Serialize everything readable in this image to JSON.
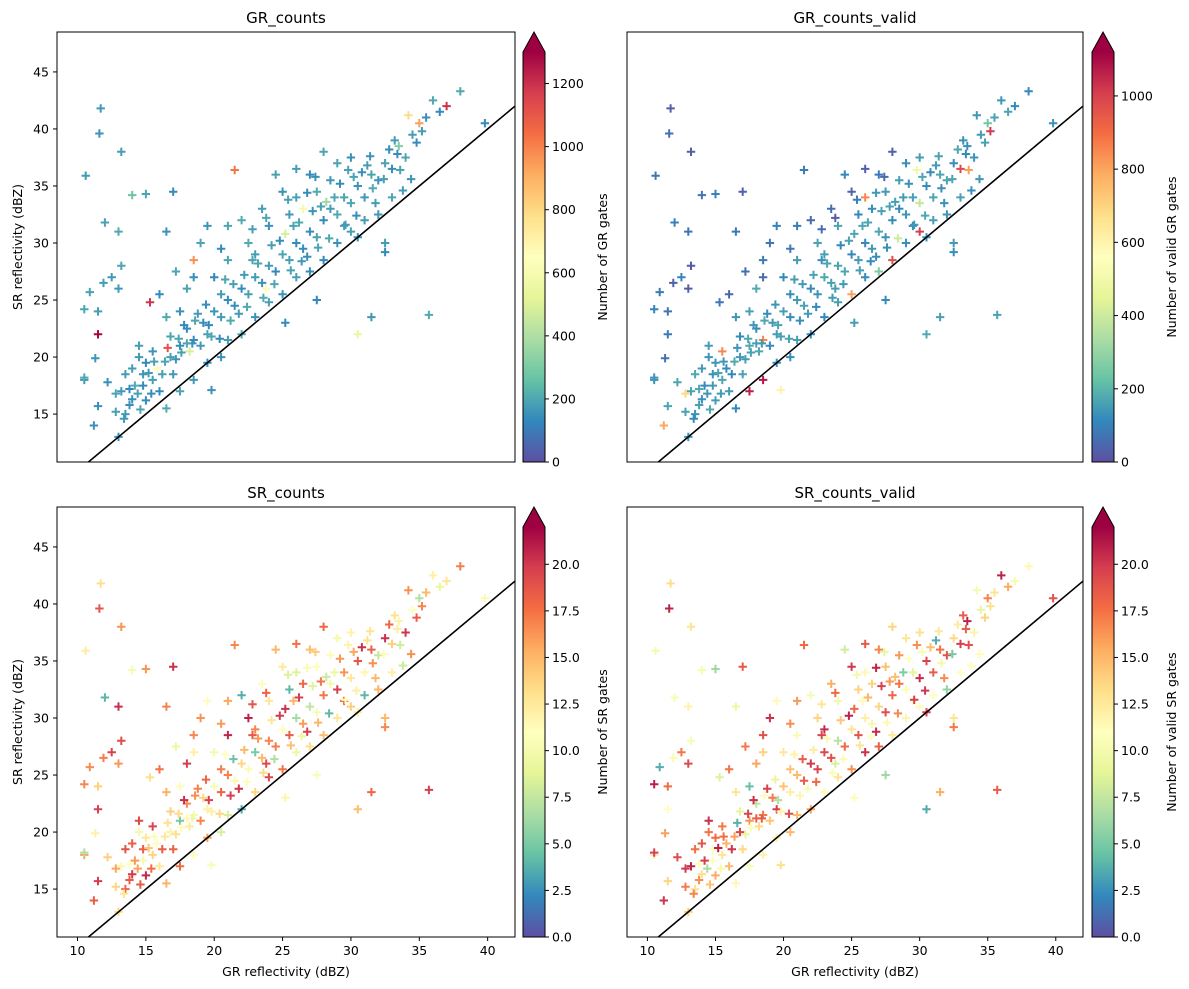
{
  "chart_data": [
    {
      "type": "scatter",
      "title": "GR_counts",
      "xlabel": "",
      "ylabel": "SR reflectivity (dBZ)",
      "xlim": [
        8.5,
        42
      ],
      "ylim": [
        10.8,
        48.5
      ],
      "xticks": [],
      "yticks": [
        "15",
        "20",
        "25",
        "30",
        "35",
        "40",
        "45"
      ],
      "marker": "+",
      "colormap": "Spectral_r",
      "reference_line": "1:1",
      "colorbar": {
        "label": "Number of GR gates",
        "min": 0,
        "max": 1300,
        "extend": "max",
        "ticks": [
          "0",
          "200",
          "400",
          "600",
          "800",
          "1000",
          "1200"
        ]
      }
    },
    {
      "type": "scatter",
      "title": "GR_counts_valid",
      "xlabel": "",
      "ylabel": "",
      "xlim": [
        8.5,
        42
      ],
      "ylim": [
        10.8,
        48.5
      ],
      "xticks": [],
      "yticks": [],
      "marker": "+",
      "colormap": "Spectral_r",
      "reference_line": "1:1",
      "colorbar": {
        "label": "Number of valid GR gates",
        "min": 0,
        "max": 1120,
        "extend": "max",
        "ticks": [
          "0",
          "200",
          "400",
          "600",
          "800",
          "1000"
        ]
      }
    },
    {
      "type": "scatter",
      "title": "SR_counts",
      "xlabel": "GR reflectivity (dBZ)",
      "ylabel": "SR reflectivity (dBZ)",
      "xlim": [
        8.5,
        42
      ],
      "ylim": [
        10.8,
        48.5
      ],
      "xticks": [
        "10",
        "15",
        "20",
        "25",
        "30",
        "35",
        "40"
      ],
      "yticks": [
        "15",
        "20",
        "25",
        "30",
        "35",
        "40",
        "45"
      ],
      "marker": "+",
      "colormap": "Spectral_r",
      "reference_line": "1:1",
      "colorbar": {
        "label": "Number of SR gates",
        "min": 0,
        "max": 22,
        "extend": "max",
        "ticks": [
          "0.0",
          "2.5",
          "5.0",
          "7.5",
          "10.0",
          "12.5",
          "15.0",
          "17.5",
          "20.0"
        ]
      }
    },
    {
      "type": "scatter",
      "title": "SR_counts_valid",
      "xlabel": "GR reflectivity (dBZ)",
      "ylabel": "",
      "xlim": [
        8.5,
        42
      ],
      "ylim": [
        10.8,
        48.5
      ],
      "xticks": [
        "10",
        "15",
        "20",
        "25",
        "30",
        "35",
        "40"
      ],
      "yticks": [],
      "marker": "+",
      "colormap": "Spectral_r",
      "reference_line": "1:1",
      "colorbar": {
        "label": "Number of valid SR gates",
        "min": 0,
        "max": 22,
        "extend": "max",
        "ticks": [
          "0.0",
          "2.5",
          "5.0",
          "7.5",
          "10.0",
          "12.5",
          "15.0",
          "17.5",
          "20.0"
        ]
      }
    }
  ],
  "scatter_points": [
    [
      13.0,
      13.0
    ],
    [
      11.2,
      14.0
    ],
    [
      12.8,
      15.2
    ],
    [
      13.5,
      15.0
    ],
    [
      14.0,
      16.3
    ],
    [
      13.2,
      17.0
    ],
    [
      10.5,
      18.0
    ],
    [
      14.8,
      17.5
    ],
    [
      15.0,
      19.5
    ],
    [
      16.2,
      18.5
    ],
    [
      15.5,
      20.5
    ],
    [
      16.8,
      20.0
    ],
    [
      17.5,
      21.0
    ],
    [
      18.0,
      22.5
    ],
    [
      18.5,
      21.5
    ],
    [
      19.2,
      23.0
    ],
    [
      20.0,
      24.0
    ],
    [
      19.5,
      22.0
    ],
    [
      20.5,
      23.5
    ],
    [
      21.0,
      25.0
    ],
    [
      21.5,
      24.5
    ],
    [
      22.0,
      26.0
    ],
    [
      22.5,
      25.5
    ],
    [
      23.0,
      27.0
    ],
    [
      23.5,
      26.5
    ],
    [
      24.0,
      28.0
    ],
    [
      24.5,
      27.5
    ],
    [
      25.0,
      29.0
    ],
    [
      25.5,
      28.5
    ],
    [
      26.0,
      30.0
    ],
    [
      26.5,
      29.5
    ],
    [
      27.0,
      31.0
    ],
    [
      27.5,
      30.5
    ],
    [
      28.0,
      32.0
    ],
    [
      28.5,
      33.0
    ],
    [
      29.0,
      32.5
    ],
    [
      29.5,
      34.0
    ],
    [
      30.0,
      33.5
    ],
    [
      30.5,
      35.0
    ],
    [
      31.0,
      34.0
    ],
    [
      31.5,
      36.0
    ],
    [
      32.0,
      35.5
    ],
    [
      32.5,
      37.0
    ],
    [
      33.0,
      36.5
    ],
    [
      33.5,
      38.5
    ],
    [
      34.0,
      37.5
    ],
    [
      34.5,
      39.5
    ],
    [
      35.0,
      40.5
    ],
    [
      36.0,
      42.5
    ],
    [
      37.0,
      42.0
    ],
    [
      38.0,
      43.3
    ],
    [
      35.5,
      41.0
    ],
    [
      36.5,
      41.5
    ],
    [
      39.8,
      40.5
    ],
    [
      33.2,
      39.0
    ],
    [
      34.2,
      41.2
    ],
    [
      22.5,
      30.0
    ],
    [
      21.0,
      28.5
    ],
    [
      24.0,
      31.5
    ],
    [
      25.5,
      32.5
    ],
    [
      23.0,
      29.0
    ],
    [
      20.0,
      27.0
    ],
    [
      26.5,
      33.0
    ],
    [
      27.5,
      34.5
    ],
    [
      28.5,
      35.5
    ],
    [
      26.0,
      34.0
    ],
    [
      22.0,
      32.0
    ],
    [
      21.0,
      31.5
    ],
    [
      19.0,
      30.0
    ],
    [
      20.5,
      29.5
    ],
    [
      18.5,
      28.5
    ],
    [
      19.5,
      31.5
    ],
    [
      23.5,
      33.0
    ],
    [
      25.0,
      34.5
    ],
    [
      24.5,
      36.0
    ],
    [
      27.0,
      36.0
    ],
    [
      26.0,
      36.5
    ],
    [
      29.0,
      37.0
    ],
    [
      30.0,
      37.5
    ],
    [
      28.0,
      38.0
    ],
    [
      21.5,
      36.4
    ],
    [
      16.5,
      31.0
    ],
    [
      17.0,
      34.5
    ],
    [
      14.0,
      34.2
    ],
    [
      15.0,
      34.3
    ],
    [
      13.2,
      38.0
    ],
    [
      11.7,
      41.8
    ],
    [
      11.6,
      39.6
    ],
    [
      10.6,
      35.9
    ],
    [
      12.0,
      31.8
    ],
    [
      13.0,
      31.0
    ],
    [
      10.5,
      24.2
    ],
    [
      11.5,
      24.0
    ],
    [
      10.9,
      25.7
    ],
    [
      11.9,
      26.5
    ],
    [
      12.5,
      27.0
    ],
    [
      13.2,
      28.0
    ],
    [
      13.0,
      26.0
    ],
    [
      11.5,
      22.0
    ],
    [
      11.3,
      19.9
    ],
    [
      11.5,
      15.7
    ],
    [
      10.5,
      18.2
    ],
    [
      15.3,
      24.8
    ],
    [
      16.5,
      23.5
    ],
    [
      17.5,
      24.0
    ],
    [
      18.0,
      26.0
    ],
    [
      18.5,
      27.0
    ],
    [
      17.2,
      27.5
    ],
    [
      16.0,
      25.5
    ],
    [
      14.5,
      21.0
    ],
    [
      15.0,
      16.2
    ],
    [
      14.2,
      17.5
    ],
    [
      16.5,
      15.5
    ],
    [
      17.5,
      17.0
    ],
    [
      18.5,
      18.0
    ],
    [
      19.5,
      19.5
    ],
    [
      20.5,
      20.0
    ],
    [
      21.0,
      21.5
    ],
    [
      22.0,
      22.0
    ],
    [
      23.0,
      23.5
    ],
    [
      24.0,
      24.8
    ],
    [
      25.0,
      25.5
    ],
    [
      26.0,
      27.0
    ],
    [
      27.0,
      27.5
    ],
    [
      28.0,
      28.5
    ],
    [
      29.0,
      30.0
    ],
    [
      30.0,
      31.0
    ],
    [
      31.0,
      32.0
    ],
    [
      32.0,
      32.5
    ],
    [
      33.0,
      34.0
    ],
    [
      32.5,
      30.0
    ],
    [
      30.5,
      30.5
    ],
    [
      27.5,
      25.0
    ],
    [
      25.2,
      23.0
    ],
    [
      30.5,
      22.0
    ],
    [
      31.5,
      23.5
    ],
    [
      32.5,
      29.2
    ],
    [
      35.7,
      23.7
    ],
    [
      19.8,
      17.1
    ],
    [
      17.0,
      18.5
    ],
    [
      14.0,
      19.0
    ],
    [
      13.5,
      18.5
    ],
    [
      14.5,
      20.0
    ],
    [
      15.5,
      18.0
    ],
    [
      16.0,
      17.0
    ],
    [
      16.8,
      21.8
    ],
    [
      18.2,
      20.5
    ],
    [
      19.0,
      21.0
    ],
    [
      17.8,
      22.8
    ],
    [
      20.5,
      25.5
    ],
    [
      22.8,
      28.5
    ],
    [
      24.2,
      29.8
    ],
    [
      25.8,
      31.5
    ],
    [
      27.2,
      32.8
    ],
    [
      28.8,
      34.0
    ],
    [
      30.2,
      35.8
    ],
    [
      31.8,
      33.5
    ],
    [
      29.5,
      31.5
    ],
    [
      26.8,
      28.8
    ],
    [
      23.8,
      26.0
    ],
    [
      21.8,
      23.8
    ],
    [
      19.8,
      21.8
    ],
    [
      18.8,
      23.8
    ],
    [
      17.2,
      19.8
    ],
    [
      15.8,
      19.0
    ],
    [
      14.8,
      18.5
    ],
    [
      13.8,
      15.8
    ],
    [
      12.8,
      16.8
    ],
    [
      12.2,
      17.8
    ],
    [
      13.4,
      14.6
    ],
    [
      14.6,
      15.4
    ],
    [
      15.4,
      16.8
    ],
    [
      16.4,
      19.6
    ],
    [
      17.6,
      20.4
    ],
    [
      18.4,
      21.2
    ],
    [
      19.6,
      22.8
    ],
    [
      20.4,
      21.6
    ],
    [
      21.2,
      23.2
    ],
    [
      22.4,
      24.4
    ],
    [
      23.6,
      25.2
    ],
    [
      24.4,
      26.4
    ],
    [
      25.6,
      27.6
    ],
    [
      26.4,
      28.4
    ],
    [
      27.6,
      29.6
    ],
    [
      28.4,
      30.4
    ],
    [
      29.6,
      31.6
    ],
    [
      30.4,
      32.4
    ],
    [
      31.6,
      34.8
    ],
    [
      32.4,
      35.6
    ],
    [
      33.6,
      36.4
    ],
    [
      34.4,
      35.6
    ],
    [
      33.8,
      34.6
    ],
    [
      31.2,
      36.8
    ],
    [
      30.8,
      36.2
    ],
    [
      29.2,
      35.2
    ],
    [
      28.2,
      33.6
    ],
    [
      27.8,
      33.2
    ],
    [
      26.2,
      31.8
    ],
    [
      25.2,
      30.8
    ],
    [
      24.8,
      30.2
    ],
    [
      23.2,
      28.2
    ],
    [
      22.2,
      27.2
    ],
    [
      21.4,
      26.4
    ],
    [
      20.8,
      26.8
    ],
    [
      19.4,
      24.6
    ],
    [
      18.6,
      23.2
    ],
    [
      18.0,
      21.2
    ],
    [
      17.4,
      21.6
    ],
    [
      16.6,
      20.8
    ],
    [
      15.6,
      19.6
    ],
    [
      15.2,
      18.6
    ],
    [
      14.4,
      16.8
    ],
    [
      13.8,
      17.2
    ],
    [
      29.8,
      36.4
    ],
    [
      31.4,
      37.6
    ],
    [
      32.8,
      38.2
    ],
    [
      33.4,
      37.8
    ],
    [
      34.8,
      38.8
    ],
    [
      35.2,
      39.8
    ],
    [
      27.4,
      35.8
    ],
    [
      25.4,
      33.8
    ],
    [
      23.8,
      32.2
    ],
    [
      22.8,
      31.2
    ],
    [
      26.8,
      34.4
    ]
  ]
}
